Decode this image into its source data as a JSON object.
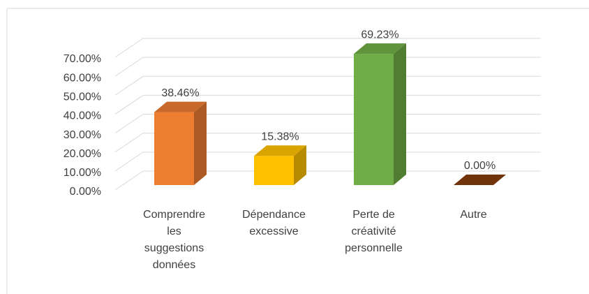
{
  "chart_data": {
    "type": "bar3d",
    "categories": [
      "Comprendre les suggestions données",
      "Dépendance excessive",
      "Perte de créativité personnelle",
      "Autre"
    ],
    "values": [
      38.46,
      15.38,
      69.23,
      0
    ],
    "value_labels": [
      "38.46%",
      "15.38%",
      "69.23%",
      "0.00%"
    ],
    "colors": [
      "#ed7d31",
      "#ffc000",
      "#70ad47",
      "#843c0c"
    ],
    "ylim": [
      0,
      70
    ],
    "yticks": [
      {
        "value": 0,
        "label": "0.00%"
      },
      {
        "value": 10,
        "label": "10.00%"
      },
      {
        "value": 20,
        "label": "20.00%"
      },
      {
        "value": 30,
        "label": "30.00%"
      },
      {
        "value": 40,
        "label": "40.00%"
      },
      {
        "value": 50,
        "label": "50.00%"
      },
      {
        "value": 60,
        "label": "60.00%"
      },
      {
        "value": 70,
        "label": "70.00%"
      }
    ],
    "grid": true
  }
}
